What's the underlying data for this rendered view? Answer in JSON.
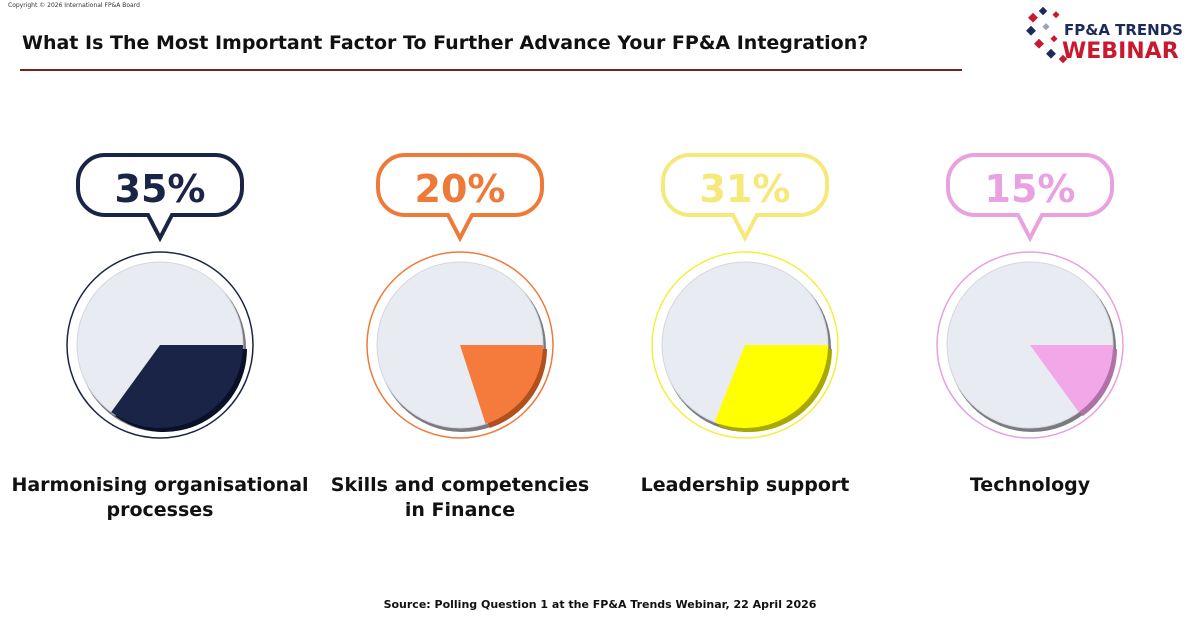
{
  "copyright": "Copyright © 2026 International FP&A Board",
  "logo": {
    "line1": "FP&A TRENDS",
    "line2": "WEBINAR"
  },
  "chart_data": {
    "type": "pie",
    "title": "What Is The Most Important Factor To Further Advance Your FP&A Integration?",
    "categories": [
      "Harmonising organisational processes",
      "Skills and competencies in Finance",
      "Leadership support",
      "Technology"
    ],
    "values": [
      35,
      20,
      31,
      15
    ],
    "value_labels": [
      "35%",
      "20%",
      "31%",
      "15%"
    ],
    "colors": [
      "#1a2447",
      "#f47b3b",
      "#ffff00",
      "#f1a7e8"
    ],
    "source": "Source: Polling Question 1 at the FP&A Trends Webinar, 22 April 2026"
  }
}
